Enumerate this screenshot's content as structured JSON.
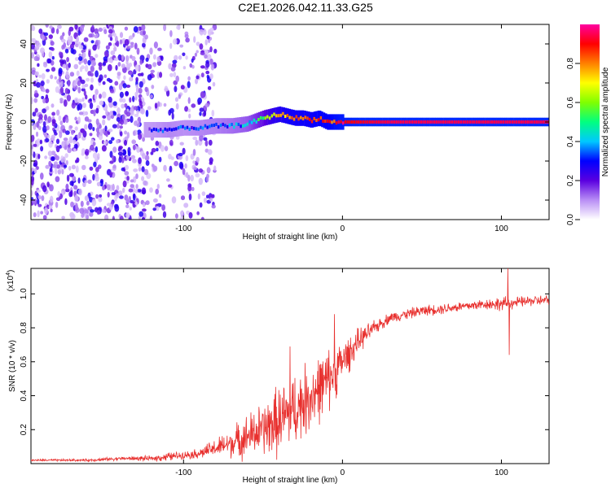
{
  "title": "C2E1.2026.042.11.33.G25",
  "chart_data": [
    {
      "type": "heatmap",
      "xlabel": "Height of straight line (km)",
      "ylabel": "Frequency (Hz)",
      "xlim": [
        -196,
        130
      ],
      "ylim": [
        -50,
        50
      ],
      "xticks": [
        -100,
        0,
        100
      ],
      "yticks": [
        -40,
        -20,
        0,
        20,
        40
      ],
      "ridge": {
        "x": [
          -122,
          -110,
          -100,
          -90,
          -80,
          -70,
          -60,
          -50,
          -45,
          -40,
          -35,
          -30,
          -25,
          -20,
          -15,
          -10,
          -5,
          0,
          10,
          30,
          60,
          100,
          130
        ],
        "freq": [
          -4,
          -4,
          -3,
          -3,
          -2,
          -2,
          -1,
          2,
          3,
          4,
          3,
          2,
          2,
          1,
          2,
          0,
          0,
          0,
          0,
          0,
          0,
          0,
          0
        ],
        "amplitude": [
          0.25,
          0.3,
          0.28,
          0.3,
          0.32,
          0.35,
          0.4,
          0.55,
          0.7,
          0.75,
          0.8,
          0.8,
          0.82,
          0.82,
          0.85,
          0.85,
          0.88,
          0.9,
          0.92,
          0.95,
          0.95,
          0.95,
          0.95
        ]
      },
      "noise_region": [
        -196,
        -80
      ],
      "colorbar": {
        "label": "Normalized spectral amplitude",
        "range": [
          0,
          1
        ],
        "ticks": [
          "0.0",
          "0.2",
          "0.4",
          "0.6",
          "0.8"
        ],
        "tick_values": [
          0,
          0.2,
          0.4,
          0.6,
          0.8
        ],
        "colors": [
          "#ffffff",
          "#b98ef5",
          "#5a00e0",
          "#0000ff",
          "#00c8ff",
          "#00ff80",
          "#80ff00",
          "#ffff00",
          "#ff8000",
          "#ff0000",
          "#ff00a0"
        ]
      }
    },
    {
      "type": "line",
      "xlabel": "Height of straight line (km)",
      "ylabel": "SNR (10 * v/v)",
      "scale_label": "(x10",
      "scale_exponent": "4",
      "scale_suffix": ")",
      "xlim": [
        -196,
        130
      ],
      "ylim": [
        0,
        1.15
      ],
      "xticks": [
        -100,
        0,
        100
      ],
      "yticks": [
        0.2,
        0.4,
        0.6,
        0.8,
        1.0
      ],
      "ytick_labels": [
        "0.2",
        "0.4",
        "0.6",
        "0.8",
        "1.0"
      ],
      "series": [
        {
          "name": "SNR",
          "color": "#e8302e",
          "x": [
            -196,
            -180,
            -160,
            -140,
            -120,
            -110,
            -100,
            -90,
            -80,
            -70,
            -60,
            -50,
            -40,
            -30,
            -20,
            -10,
            0,
            10,
            20,
            30,
            40,
            50,
            60,
            70,
            80,
            90,
            100,
            110,
            120,
            130
          ],
          "values": [
            0.02,
            0.02,
            0.02,
            0.03,
            0.03,
            0.04,
            0.05,
            0.06,
            0.09,
            0.12,
            0.16,
            0.2,
            0.25,
            0.32,
            0.4,
            0.48,
            0.6,
            0.72,
            0.8,
            0.86,
            0.88,
            0.9,
            0.91,
            0.92,
            0.93,
            0.94,
            0.94,
            0.95,
            0.96,
            0.96
          ],
          "noise": [
            0.005,
            0.006,
            0.008,
            0.01,
            0.015,
            0.025,
            0.02,
            0.03,
            0.05,
            0.08,
            0.12,
            0.15,
            0.2,
            0.2,
            0.2,
            0.18,
            0.12,
            0.07,
            0.04,
            0.03,
            0.03,
            0.03,
            0.03,
            0.03,
            0.03,
            0.03,
            0.04,
            0.03,
            0.03,
            0.03
          ],
          "spikes": [
            {
              "x": 104,
              "value": 1.15
            },
            {
              "x": 105,
              "value": 0.64
            },
            {
              "x": -5,
              "value": 0.88
            },
            {
              "x": -33,
              "value": 0.69
            }
          ]
        }
      ]
    }
  ]
}
